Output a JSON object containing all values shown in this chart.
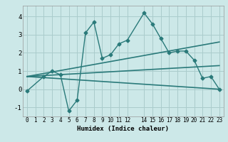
{
  "xlabel": "Humidex (Indice chaleur)",
  "ylabel": "",
  "bg_color": "#cce8e8",
  "grid_color": "#aacccc",
  "line_color": "#2a7a7a",
  "xlim": [
    -0.5,
    23.5
  ],
  "ylim": [
    -1.5,
    4.6
  ],
  "xticks": [
    0,
    1,
    2,
    3,
    4,
    5,
    6,
    7,
    8,
    9,
    10,
    11,
    12,
    14,
    15,
    16,
    17,
    18,
    19,
    20,
    21,
    22,
    23
  ],
  "yticks": [
    -1,
    0,
    1,
    2,
    3,
    4
  ],
  "main_series": {
    "x": [
      0,
      2,
      3,
      4,
      5,
      6,
      7,
      8,
      9,
      10,
      11,
      12,
      14,
      15,
      16,
      17,
      18,
      19,
      20,
      21,
      22,
      23
    ],
    "y": [
      -0.1,
      0.7,
      1.0,
      0.8,
      -1.2,
      -0.6,
      3.1,
      3.7,
      1.7,
      1.9,
      2.5,
      2.7,
      4.2,
      3.6,
      2.8,
      2.0,
      2.1,
      2.1,
      1.6,
      0.6,
      0.7,
      0.0
    ]
  },
  "reg_lines": [
    {
      "x": [
        0,
        23
      ],
      "y": [
        0.7,
        0.0
      ]
    },
    {
      "x": [
        0,
        23
      ],
      "y": [
        0.7,
        2.6
      ]
    },
    {
      "x": [
        0,
        23
      ],
      "y": [
        0.7,
        1.3
      ]
    }
  ]
}
